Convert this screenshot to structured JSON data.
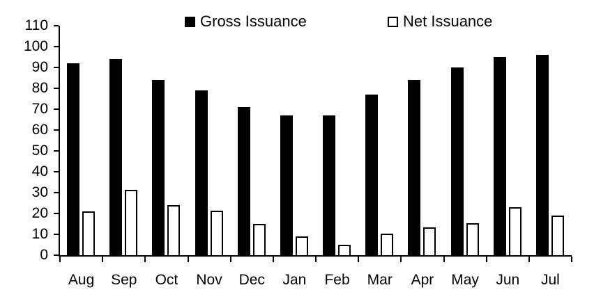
{
  "chart_data": {
    "type": "bar",
    "title": "",
    "xlabel": "",
    "ylabel": "",
    "categories": [
      "Aug",
      "Sep",
      "Oct",
      "Nov",
      "Dec",
      "Jan",
      "Feb",
      "Mar",
      "Apr",
      "May",
      "Jun",
      "Jul"
    ],
    "series": [
      {
        "name": "Gross Issuance",
        "fill": "#000000",
        "values": [
          92,
          94,
          84,
          79,
          71,
          67,
          67,
          77,
          84,
          90,
          95,
          96
        ]
      },
      {
        "name": "Net Issuance",
        "fill": "#ffffff",
        "border": "#000000",
        "values": [
          21,
          31.5,
          24,
          21.5,
          15,
          9,
          5,
          10.5,
          13.5,
          15.5,
          23,
          19
        ]
      }
    ],
    "ylim": [
      0,
      110
    ],
    "ytick_step": 10,
    "grid": false,
    "legend_position": "top",
    "axis_color": "#000000",
    "background_color": "#ffffff"
  }
}
